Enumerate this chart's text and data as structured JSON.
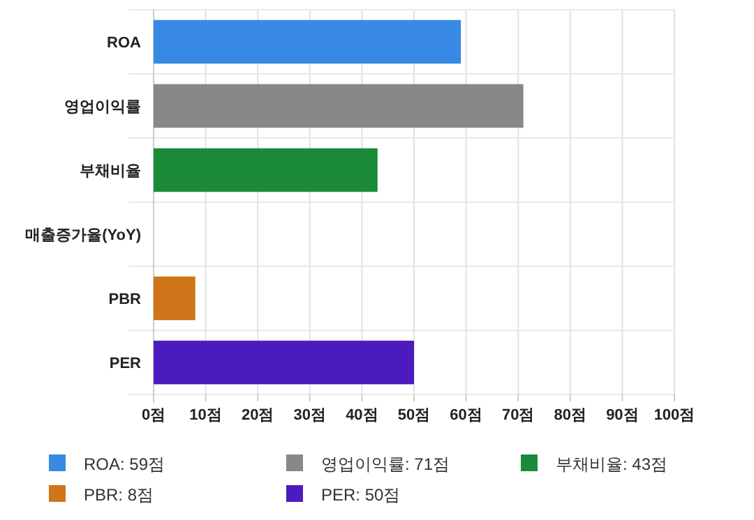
{
  "chart_data": {
    "type": "bar",
    "orientation": "horizontal",
    "categories": [
      "ROA",
      "영업이익률",
      "부채비율",
      "매출증가율(YoY)",
      "PBR",
      "PER"
    ],
    "series": [
      {
        "name": "ROA: 59점",
        "color": "#3789e3",
        "values": [
          59,
          null,
          null,
          null,
          null,
          null
        ]
      },
      {
        "name": "영업이익률: 71점",
        "color": "#888888",
        "values": [
          null,
          71,
          null,
          null,
          null,
          null
        ]
      },
      {
        "name": "부채비율: 43점",
        "color": "#1a8a38",
        "values": [
          null,
          null,
          43,
          null,
          null,
          null
        ]
      },
      {
        "name": "PBR: 8점",
        "color": "#cf7419",
        "values": [
          null,
          null,
          null,
          null,
          8,
          null
        ]
      },
      {
        "name": "PER: 50점",
        "color": "#4c1bbd",
        "values": [
          null,
          null,
          null,
          null,
          null,
          50
        ]
      }
    ],
    "xlim": [
      0,
      100
    ],
    "xticks": [
      {
        "value": 0,
        "label": "0점"
      },
      {
        "value": 10,
        "label": "10점"
      },
      {
        "value": 20,
        "label": "20점"
      },
      {
        "value": 30,
        "label": "30점"
      },
      {
        "value": 40,
        "label": "40점"
      },
      {
        "value": 50,
        "label": "50점"
      },
      {
        "value": 60,
        "label": "60점"
      },
      {
        "value": 70,
        "label": "70점"
      },
      {
        "value": 80,
        "label": "80점"
      },
      {
        "value": 90,
        "label": "90점"
      },
      {
        "value": 100,
        "label": "100점"
      }
    ],
    "grid": true,
    "legend": "bottom"
  }
}
